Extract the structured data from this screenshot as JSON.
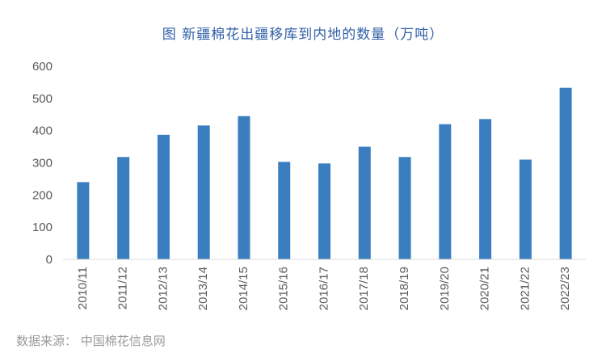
{
  "chart_data": {
    "type": "bar",
    "title": "图 新疆棉花出疆移库到内地的数量（万吨）",
    "categories": [
      "2010/11",
      "2011/12",
      "2012/13",
      "2013/14",
      "2014/15",
      "2015/16",
      "2016/17",
      "2017/18",
      "2018/19",
      "2019/20",
      "2020/21",
      "2021/22",
      "2022/23"
    ],
    "values": [
      240,
      318,
      387,
      416,
      445,
      303,
      298,
      350,
      318,
      420,
      436,
      310,
      533
    ],
    "xlabel": "",
    "ylabel": "",
    "ylim": [
      0,
      600
    ],
    "yticks": [
      0,
      100,
      200,
      300,
      400,
      500,
      600
    ],
    "grid": false,
    "bar_color": "#3a7ebf"
  },
  "source": "数据来源：  中国棉花信息网"
}
